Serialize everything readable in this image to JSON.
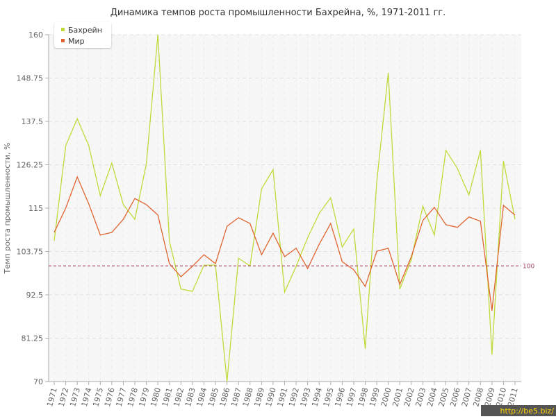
{
  "chart_data": {
    "type": "line",
    "title": "Динамика темпов роста промышленности Бахрейна, %, 1971-2011 гг.",
    "y_label": "Темп роста промышленности, %",
    "categories": [
      "1971",
      "1972",
      "1973",
      "1974",
      "1975",
      "1976",
      "1977",
      "1978",
      "1979",
      "1980",
      "1981",
      "1982",
      "1983",
      "1984",
      "1985",
      "1986",
      "1987",
      "1988",
      "1989",
      "1990",
      "1991",
      "1992",
      "1993",
      "1994",
      "1995",
      "1996",
      "1997",
      "1998",
      "1999",
      "2000",
      "2001",
      "2002",
      "2003",
      "2004",
      "2005",
      "2006",
      "2007",
      "2008",
      "2009",
      "2010",
      "2011"
    ],
    "series": [
      {
        "name": "Бахрейн",
        "color": "#bedb39",
        "values": [
          106.5,
          131.2,
          138.2,
          131.2,
          118.2,
          126.7,
          115.9,
          112.1,
          126.5,
          160,
          106.4,
          94,
          93.4,
          100.2,
          100.2,
          70,
          102,
          100,
          120,
          125,
          93.2,
          99.9,
          107.3,
          113.6,
          117.7,
          104.9,
          109.6,
          78.5,
          121.8,
          150.1,
          94,
          101.7,
          115.5,
          108,
          130,
          125.3,
          118.4,
          130,
          77,
          127.2,
          112.1
        ]
      },
      {
        "name": "Мир",
        "color": "#e0642f",
        "values": [
          108.7,
          115,
          123.1,
          116.1,
          108,
          108.7,
          112.1,
          117.5,
          115.9,
          113.2,
          100.6,
          97.2,
          99.9,
          102.9,
          100.6,
          110.3,
          112.5,
          111,
          102.9,
          108.5,
          102.4,
          104.6,
          99.3,
          105.6,
          111,
          101.1,
          99,
          94.7,
          103.8,
          104.6,
          95.2,
          102.4,
          111.8,
          115.2,
          110.7,
          110,
          112.7,
          111.6,
          88.4,
          115.7,
          113.2
        ]
      }
    ],
    "ylim": [
      70,
      160
    ],
    "yticks": [
      70,
      81.25,
      92.5,
      103.75,
      115,
      126.25,
      137.5,
      148.75,
      160
    ],
    "reference_line": {
      "value": 100,
      "label": "100",
      "color": "#a0405a"
    },
    "grid": true,
    "legend": "upper-left",
    "watermark": "http://be5.biz/"
  }
}
